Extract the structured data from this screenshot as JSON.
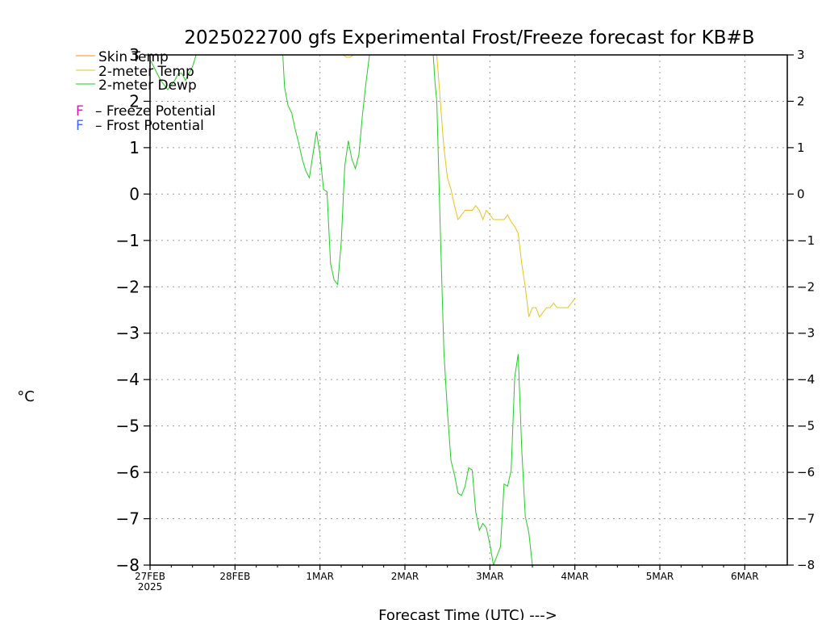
{
  "chart_data": {
    "type": "line",
    "title": "2025022700 gfs Experimental Frost/Freeze forecast for KB#B",
    "xlabel": "Forecast Time (UTC) --->",
    "ylabel": "°C",
    "ylim": [
      -8,
      3
    ],
    "yticks": [
      3,
      2,
      1,
      0,
      -1,
      -2,
      -3,
      -4,
      -5,
      -6,
      -7,
      -8
    ],
    "ytick_labels": [
      "3",
      "2",
      "1",
      "0",
      "−1",
      "−2",
      "−3",
      "−4",
      "−5",
      "−6",
      "−7",
      "−8"
    ],
    "xlim": [
      "2025-02-27 00Z",
      "2025-03-06 12Z"
    ],
    "x_hours_span": 180,
    "xticks": [
      {
        "hour": 0,
        "label": "27FEB",
        "sublabel": "2025"
      },
      {
        "hour": 24,
        "label": "28FEB"
      },
      {
        "hour": 48,
        "label": "1MAR"
      },
      {
        "hour": 72,
        "label": "2MAR"
      },
      {
        "hour": 96,
        "label": "3MAR"
      },
      {
        "hour": 120,
        "label": "4MAR"
      },
      {
        "hour": 144,
        "label": "5MAR"
      },
      {
        "hour": 168,
        "label": "6MAR"
      }
    ],
    "grid": true,
    "legend": {
      "placement": "top-left",
      "entries": [
        {
          "name": "Skin Temp",
          "color": "#ff8c1a"
        },
        {
          "name": "2-meter Temp",
          "color": "#e6c31e"
        },
        {
          "name": "2-meter Dewp",
          "color": "#22cc22"
        }
      ],
      "potentials": [
        {
          "symbol": "F",
          "text": "– Freeze Potential",
          "color": "#cc22aa"
        },
        {
          "symbol": "F",
          "text": "– Frost Potential",
          "color": "#4466ff"
        }
      ]
    },
    "series": [
      {
        "name": "2-meter Temp",
        "color": "#e6c31e",
        "x_hours": [
          54.5,
          55.5,
          56.5,
          57.5,
          81,
          82,
          83,
          84,
          85,
          86,
          87,
          88,
          89,
          90,
          91,
          92,
          93,
          94,
          95,
          96,
          97,
          98,
          99,
          100,
          101,
          102,
          103,
          104,
          105,
          106,
          107,
          108,
          109,
          110,
          111,
          112,
          113,
          114,
          115,
          116,
          117,
          118,
          119,
          120
        ],
        "values": [
          3.0,
          2.95,
          2.95,
          3.0,
          3.0,
          2.0,
          1.0,
          0.35,
          0.1,
          -0.25,
          -0.55,
          -0.45,
          -0.35,
          -0.35,
          -0.35,
          -0.25,
          -0.35,
          -0.55,
          -0.35,
          -0.45,
          -0.55,
          -0.55,
          -0.55,
          -0.55,
          -0.45,
          -0.6,
          -0.7,
          -0.85,
          -1.5,
          -2.0,
          -2.65,
          -2.45,
          -2.45,
          -2.65,
          -2.55,
          -2.45,
          -2.45,
          -2.35,
          -2.45,
          -2.45,
          -2.45,
          -2.45,
          -2.35,
          -2.25
        ]
      },
      {
        "name": "2-meter Dewp",
        "color": "#22cc22",
        "x_hours": [
          0,
          1,
          2,
          3,
          4,
          5,
          6,
          7,
          8,
          9,
          10,
          11,
          12,
          13,
          37.5,
          38,
          39,
          40,
          41,
          42,
          43,
          44,
          45,
          46,
          47,
          48,
          49,
          50,
          51,
          52,
          53,
          54,
          55,
          56,
          57,
          58,
          59,
          60,
          61,
          62,
          63,
          64,
          80,
          80.5,
          81,
          82,
          83,
          84,
          85,
          86,
          87,
          88,
          89,
          90,
          91,
          92,
          93,
          94,
          95,
          96,
          97,
          98,
          99,
          100,
          101,
          102,
          103,
          104,
          105,
          106,
          107,
          108,
          109,
          110,
          111
        ],
        "values": [
          2.9,
          2.75,
          2.6,
          2.45,
          2.35,
          2.25,
          2.35,
          2.45,
          2.6,
          2.6,
          2.45,
          2.6,
          2.75,
          3.0,
          3.0,
          2.3,
          1.9,
          1.75,
          1.4,
          1.1,
          0.75,
          0.5,
          0.35,
          0.85,
          1.35,
          0.85,
          0.1,
          0.05,
          -1.5,
          -1.85,
          -1.95,
          -1.05,
          0.6,
          1.15,
          0.75,
          0.55,
          0.85,
          1.7,
          2.4,
          3.0,
          3.0,
          3.0,
          3.0,
          2.4,
          2.0,
          -0.8,
          -3.4,
          -4.7,
          -5.75,
          -6.05,
          -6.45,
          -6.5,
          -6.3,
          -5.9,
          -5.95,
          -6.85,
          -7.25,
          -7.1,
          -7.2,
          -7.55,
          -8.0,
          -7.8,
          -7.6,
          -6.25,
          -6.3,
          -5.95,
          -3.95,
          -3.45,
          -5.5,
          -6.95,
          -7.3,
          -8.0,
          -8.0,
          -8.0,
          -8.0
        ]
      }
    ]
  }
}
